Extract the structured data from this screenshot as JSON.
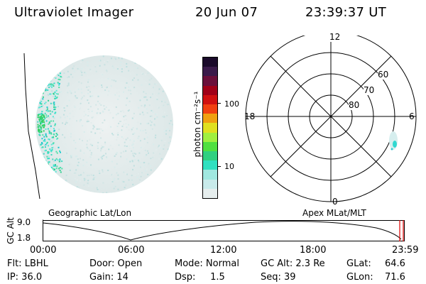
{
  "header": {
    "instrument": "Ultraviolet Imager",
    "date": "20 Jun 07",
    "time": "23:39:37 UT"
  },
  "colorbar": {
    "label": "photon cm⁻²s⁻¹",
    "ticks": [
      "100",
      "10"
    ],
    "colors": [
      "#1a0a2a",
      "#3a1a4a",
      "#6a0f3a",
      "#a00018",
      "#d01010",
      "#f04010",
      "#f0a010",
      "#e0e020",
      "#a0f040",
      "#50e040",
      "#30d080",
      "#30e0c0",
      "#a0e8e0",
      "#c8eaea",
      "#e6eeee"
    ]
  },
  "polar": {
    "mlt_labels": {
      "top": "12",
      "left": "18",
      "right": "6",
      "bottom": "0"
    },
    "lat_labels": [
      "60",
      "70",
      "80"
    ]
  },
  "orbit": {
    "left_label": "Geographic Lat/Lon",
    "right_label": "Apex MLat/MLT",
    "y_axis_label": "GC Alt",
    "y_ticks": [
      "9.0",
      "1.8"
    ],
    "x_ticks": [
      "00:00",
      "06:00",
      "12:00",
      "18:00",
      "23:59"
    ]
  },
  "info": {
    "flt": "Flt: LBHL",
    "ip": "IP: 36.0",
    "door": "Door: Open",
    "gain": "Gain: 14",
    "mode": "Mode: Normal",
    "dsp": "Dsp:     1.5",
    "gcalt": "GC Alt: 2.3 Re",
    "seq": "Seq: 39",
    "glat": "GLat:",
    "glat_val": "64.6",
    "glon": "GLon:",
    "glon_val": "71.6"
  }
}
